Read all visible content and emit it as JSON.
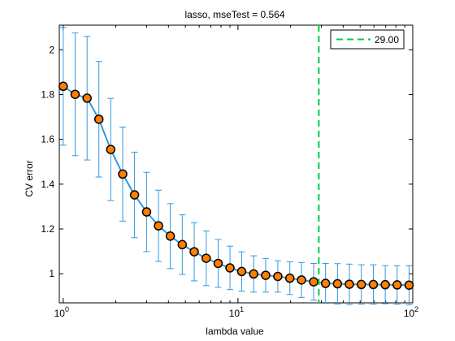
{
  "chart_data": {
    "type": "line",
    "title": "lasso, mseTest = 0.564",
    "xlabel": "lambda value",
    "ylabel": "CV error",
    "xscale": "log",
    "xlim": [
      0.95,
      100
    ],
    "ylim": [
      0.87,
      2.11
    ],
    "grid": false,
    "legend_position": "top-right",
    "x_ticks": [
      {
        "value": 1,
        "base": "10",
        "exp": "0"
      },
      {
        "value": 10,
        "base": "10",
        "exp": "1"
      },
      {
        "value": 100,
        "base": "10",
        "exp": "2"
      }
    ],
    "y_ticks": [
      1,
      1.2,
      1.4,
      1.6,
      1.8,
      2
    ],
    "y_tick_labels": [
      "1",
      "1.2",
      "1.4",
      "1.6",
      "1.8",
      "2"
    ],
    "series": [
      {
        "x": [
          1.0,
          1.17,
          1.37,
          1.6,
          1.87,
          2.19,
          2.56,
          3.0,
          3.51,
          4.1,
          4.8,
          5.62,
          6.58,
          7.7,
          9.0,
          10.5,
          12.3,
          14.4,
          16.9,
          19.8,
          23.1,
          27.1,
          31.7,
          37.1,
          43.4,
          50.8,
          59.5,
          69.6,
          81.4,
          95.3
        ],
        "mean": [
          1.837,
          1.801,
          1.784,
          1.69,
          1.555,
          1.445,
          1.352,
          1.276,
          1.214,
          1.168,
          1.13,
          1.098,
          1.069,
          1.046,
          1.026,
          1.01,
          0.999,
          0.993,
          0.988,
          0.98,
          0.972,
          0.964,
          0.957,
          0.955,
          0.953,
          0.952,
          0.952,
          0.951,
          0.95,
          0.949
        ],
        "upper": [
          2.1,
          2.075,
          2.06,
          1.948,
          1.783,
          1.655,
          1.543,
          1.453,
          1.373,
          1.313,
          1.263,
          1.228,
          1.191,
          1.153,
          1.123,
          1.098,
          1.08,
          1.068,
          1.058,
          1.053,
          1.05,
          1.046,
          1.046,
          1.045,
          1.043,
          1.04,
          1.04,
          1.036,
          1.036,
          1.036
        ],
        "lower": [
          1.574,
          1.527,
          1.508,
          1.432,
          1.327,
          1.235,
          1.161,
          1.099,
          1.055,
          1.023,
          0.997,
          0.968,
          0.947,
          0.939,
          0.929,
          0.922,
          0.918,
          0.918,
          0.918,
          0.907,
          0.894,
          0.882,
          0.868,
          0.865,
          0.863,
          0.864,
          0.864,
          0.866,
          0.864,
          0.862
        ]
      }
    ],
    "vline": {
      "x": 29.0,
      "label": "29.00"
    },
    "colors": {
      "line": "#3399dd",
      "marker_fill": "#ff7f00",
      "marker_edge": "#000000",
      "vline": "#00cc44",
      "axes": "#000000"
    }
  }
}
